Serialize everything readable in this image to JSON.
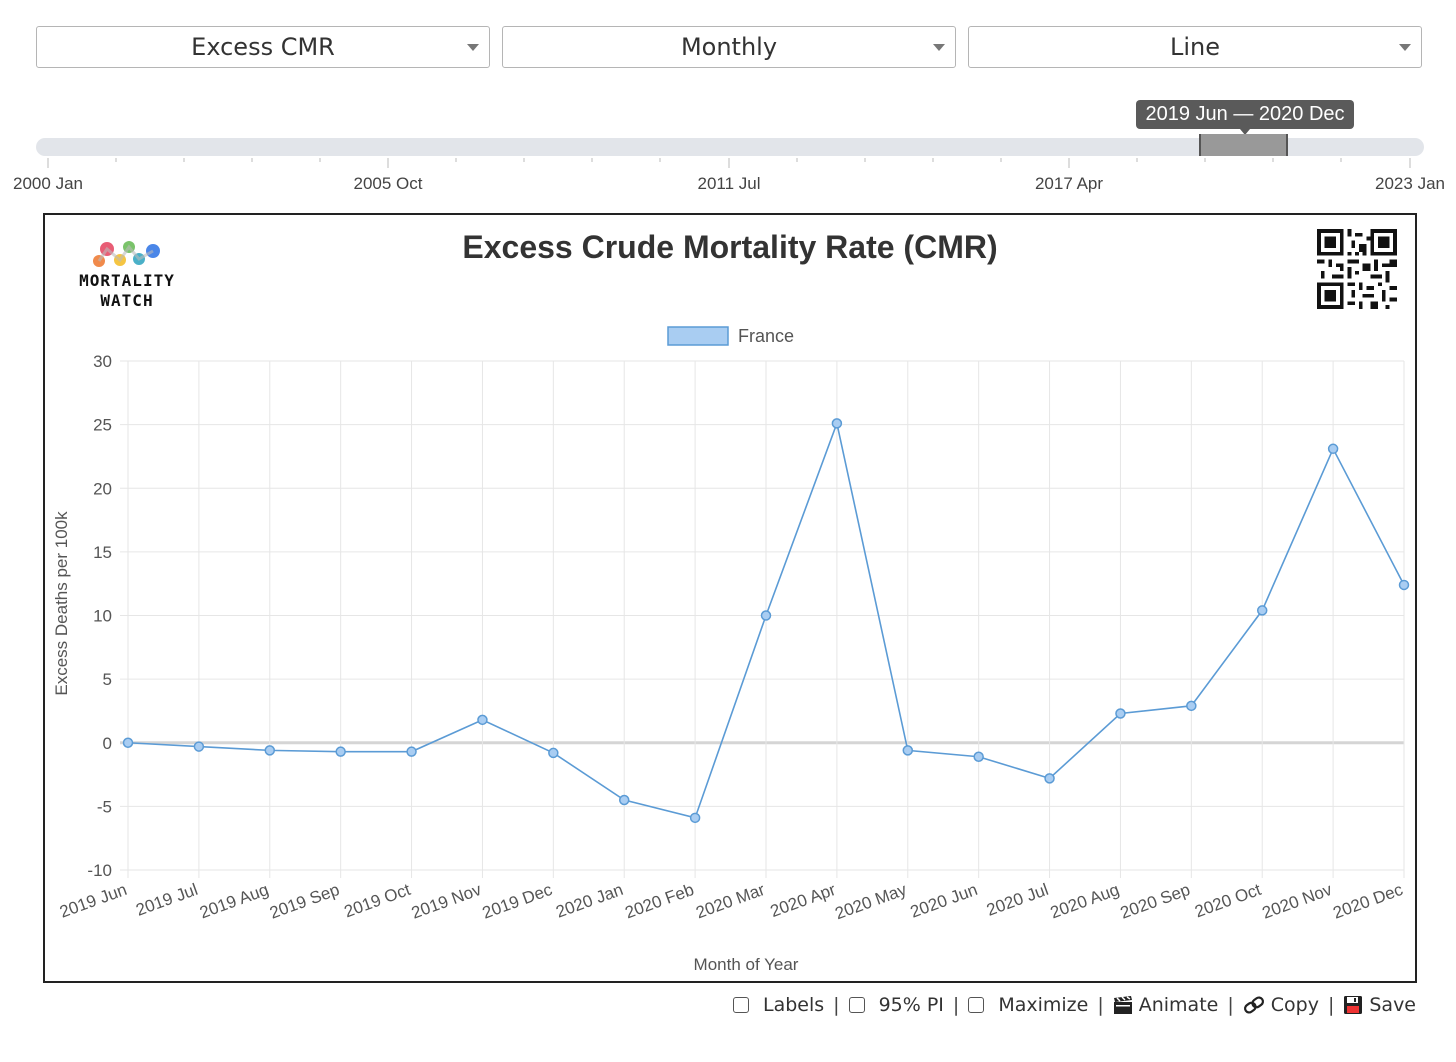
{
  "controls": {
    "metric": "Excess CMR",
    "period": "Monthly",
    "chart_type": "Line"
  },
  "range_slider": {
    "tooltip": "2019 Jun — 2020 Dec",
    "ticks": [
      "2000 Jan",
      "2005 Oct",
      "2011 Jul",
      "2017 Apr",
      "2023 Jan"
    ]
  },
  "logo": {
    "line1": "MORTALITY",
    "line2": "WATCH"
  },
  "toolbar": {
    "labels": "Labels",
    "pi": "95% PI",
    "maximize": "Maximize",
    "animate": "Animate",
    "copy": "Copy",
    "save": "Save"
  },
  "chart_data": {
    "type": "line",
    "title": "Excess Crude Mortality Rate (CMR)",
    "xlabel": "Month of Year",
    "ylabel": "Excess Deaths per 100k",
    "ylim": [
      -10,
      30
    ],
    "yticks": [
      -10,
      -5,
      0,
      5,
      10,
      15,
      20,
      25,
      30
    ],
    "categories": [
      "2019 Jun",
      "2019 Jul",
      "2019 Aug",
      "2019 Sep",
      "2019 Oct",
      "2019 Nov",
      "2019 Dec",
      "2020 Jan",
      "2020 Feb",
      "2020 Mar",
      "2020 Apr",
      "2020 May",
      "2020 Jun",
      "2020 Jul",
      "2020 Aug",
      "2020 Sep",
      "2020 Oct",
      "2020 Nov",
      "2020 Dec"
    ],
    "series": [
      {
        "name": "France",
        "color": "#5b9bd5",
        "values": [
          0.0,
          -0.3,
          -0.6,
          -0.7,
          -0.7,
          1.8,
          -0.8,
          -4.5,
          -5.9,
          10.0,
          25.1,
          -0.6,
          -1.1,
          -2.8,
          2.3,
          2.9,
          10.4,
          23.1,
          12.4
        ]
      }
    ],
    "legend": "top-center"
  }
}
